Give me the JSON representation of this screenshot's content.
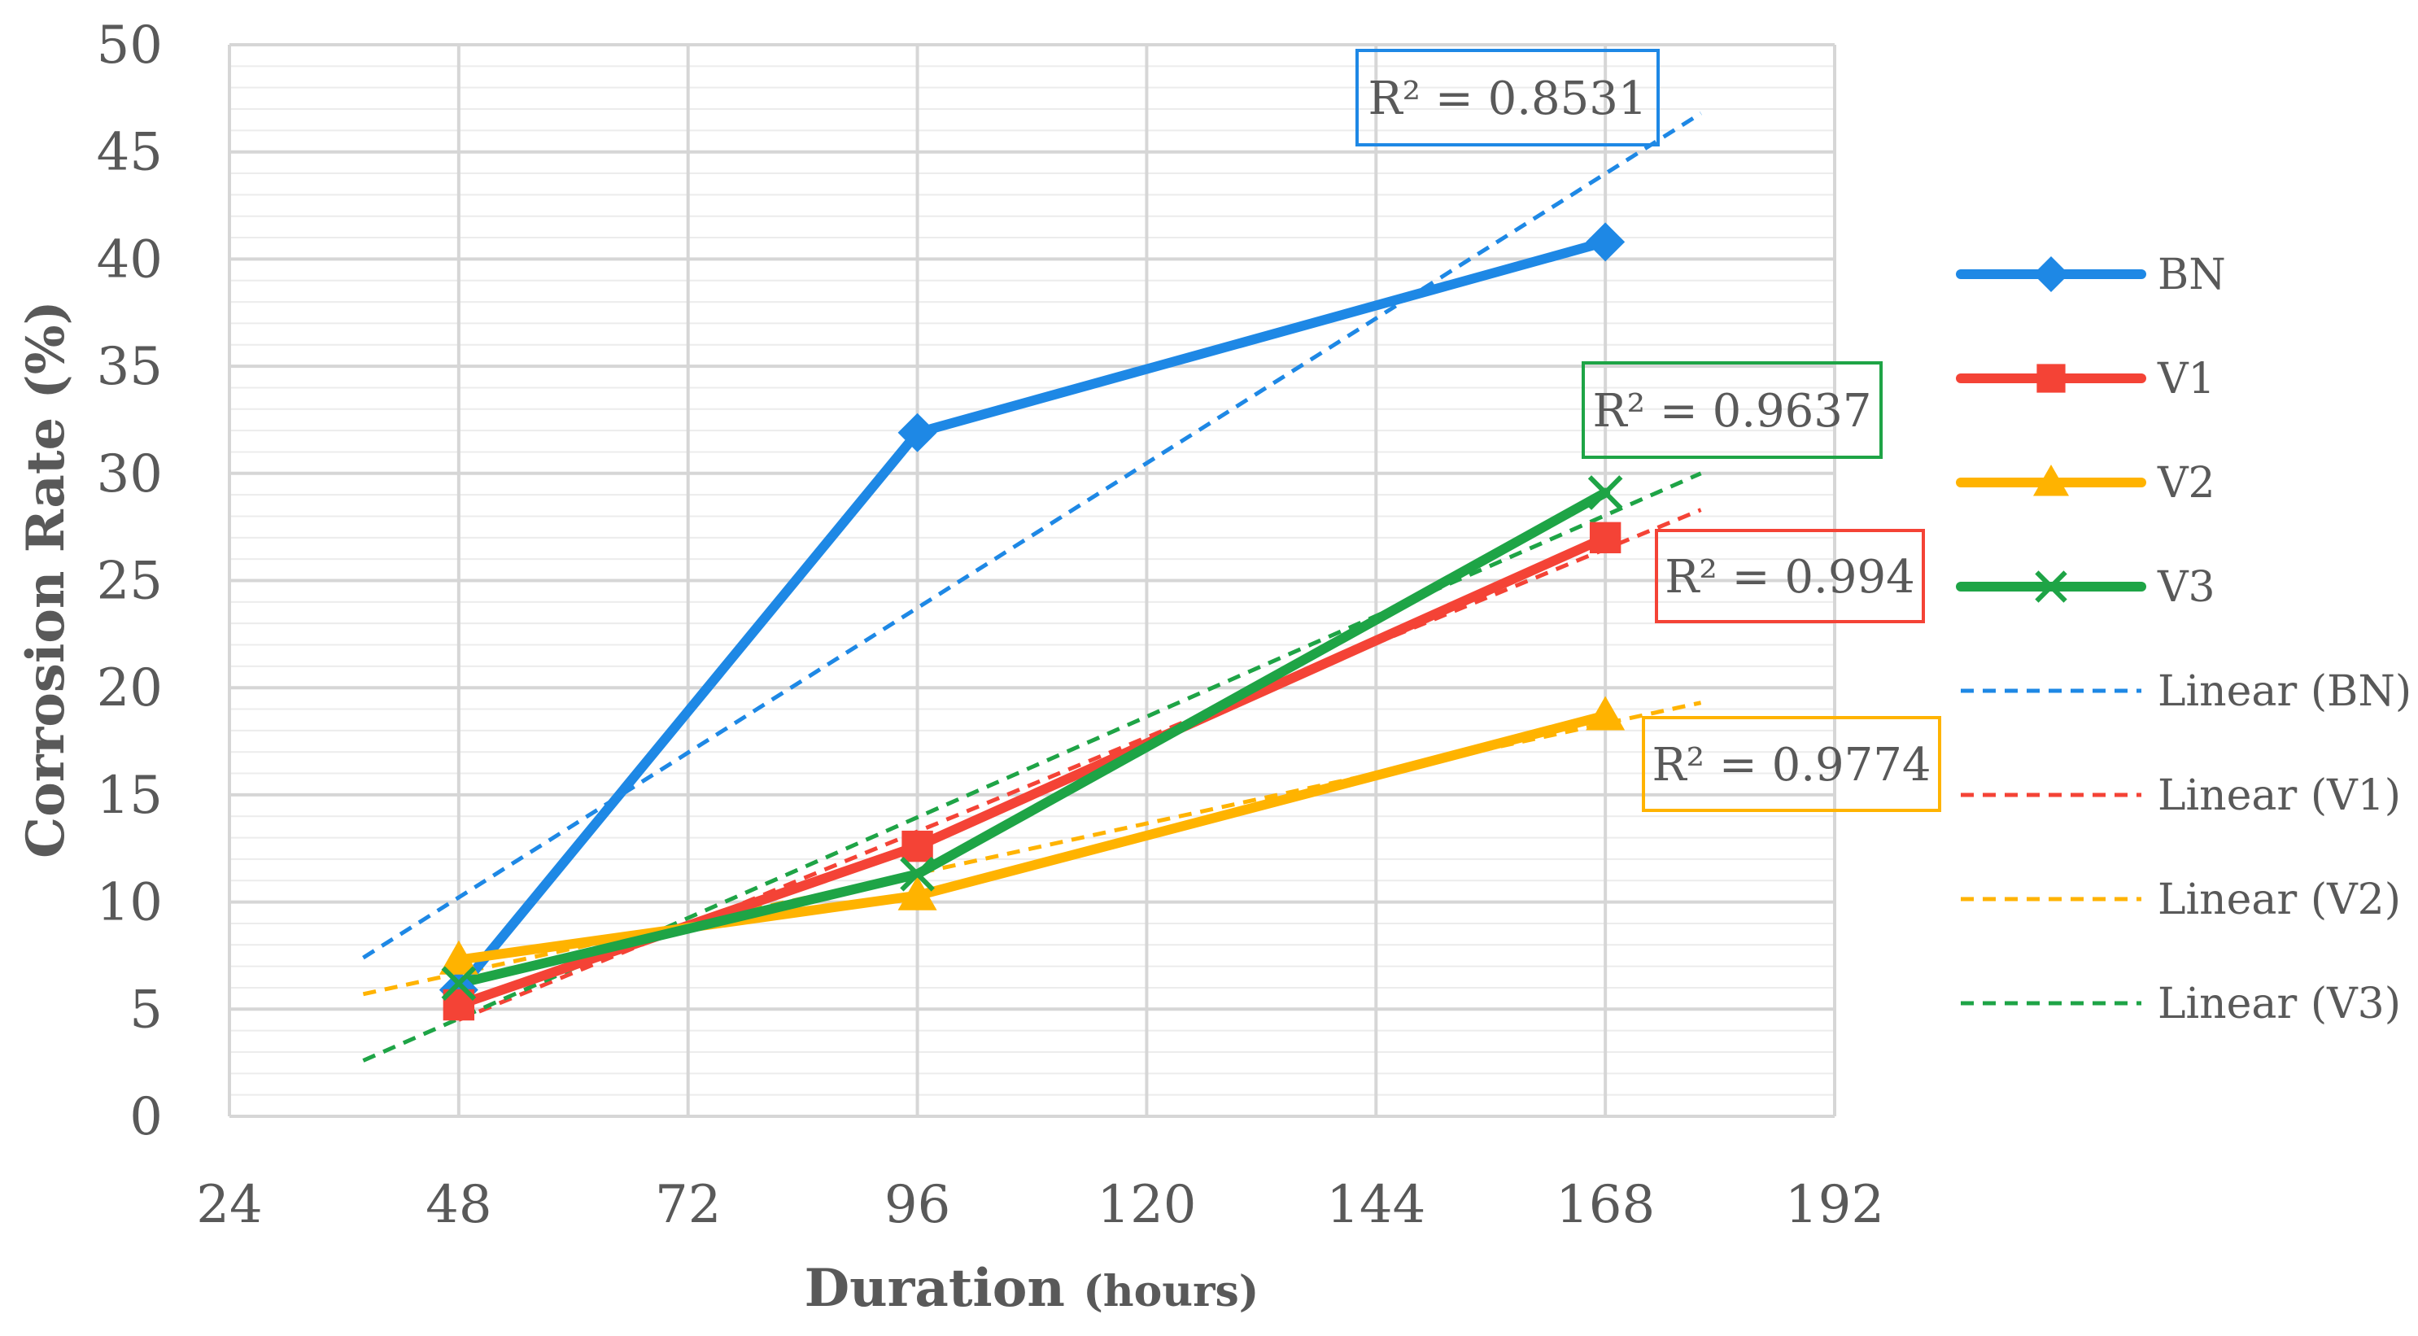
{
  "chart_data": {
    "type": "line",
    "xlabel": "Duration",
    "xlabel_unit": "(hours)",
    "ylabel": "Corrosion Rate (%)",
    "xlim": [
      24,
      192
    ],
    "ylim": [
      0,
      50
    ],
    "xticks": [
      24,
      48,
      72,
      96,
      120,
      144,
      168,
      192
    ],
    "yticks": [
      0,
      5,
      10,
      15,
      20,
      25,
      30,
      35,
      40,
      45,
      50
    ],
    "grid": true,
    "legend_position": "right",
    "x": [
      48,
      96,
      168
    ],
    "series": [
      {
        "name": "BN",
        "values": [
          5.9,
          31.9,
          40.8
        ],
        "color": "#1e88e5",
        "marker": "diamond"
      },
      {
        "name": "V1",
        "values": [
          5.2,
          12.6,
          27.0
        ],
        "color": "#f44336",
        "marker": "square"
      },
      {
        "name": "V2",
        "values": [
          7.3,
          10.3,
          18.7
        ],
        "color": "#ffb300",
        "marker": "triangle"
      },
      {
        "name": "V3",
        "values": [
          6.2,
          11.3,
          29.1
        ],
        "color": "#1ea446",
        "marker": "x"
      }
    ],
    "trendlines": [
      {
        "name": "Linear (BN)",
        "x_range": [
          38,
          178
        ],
        "y_range": [
          7.4,
          46.8
        ],
        "color": "#1e88e5",
        "r2_label": "R² = 0.8531"
      },
      {
        "name": "Linear (V1)",
        "x_range": [
          48,
          178
        ],
        "y_range": [
          4.5,
          28.3
        ],
        "color": "#f44336",
        "r2_label": "R² = 0.994"
      },
      {
        "name": "Linear (V2)",
        "x_range": [
          38,
          178
        ],
        "y_range": [
          5.7,
          19.3
        ],
        "color": "#ffb300",
        "r2_label": "R² = 0.9774"
      },
      {
        "name": "Linear (V3)",
        "x_range": [
          38,
          178
        ],
        "y_range": [
          2.6,
          30.0
        ],
        "color": "#1ea446",
        "r2_label": "R² = 0.9637"
      }
    ]
  }
}
